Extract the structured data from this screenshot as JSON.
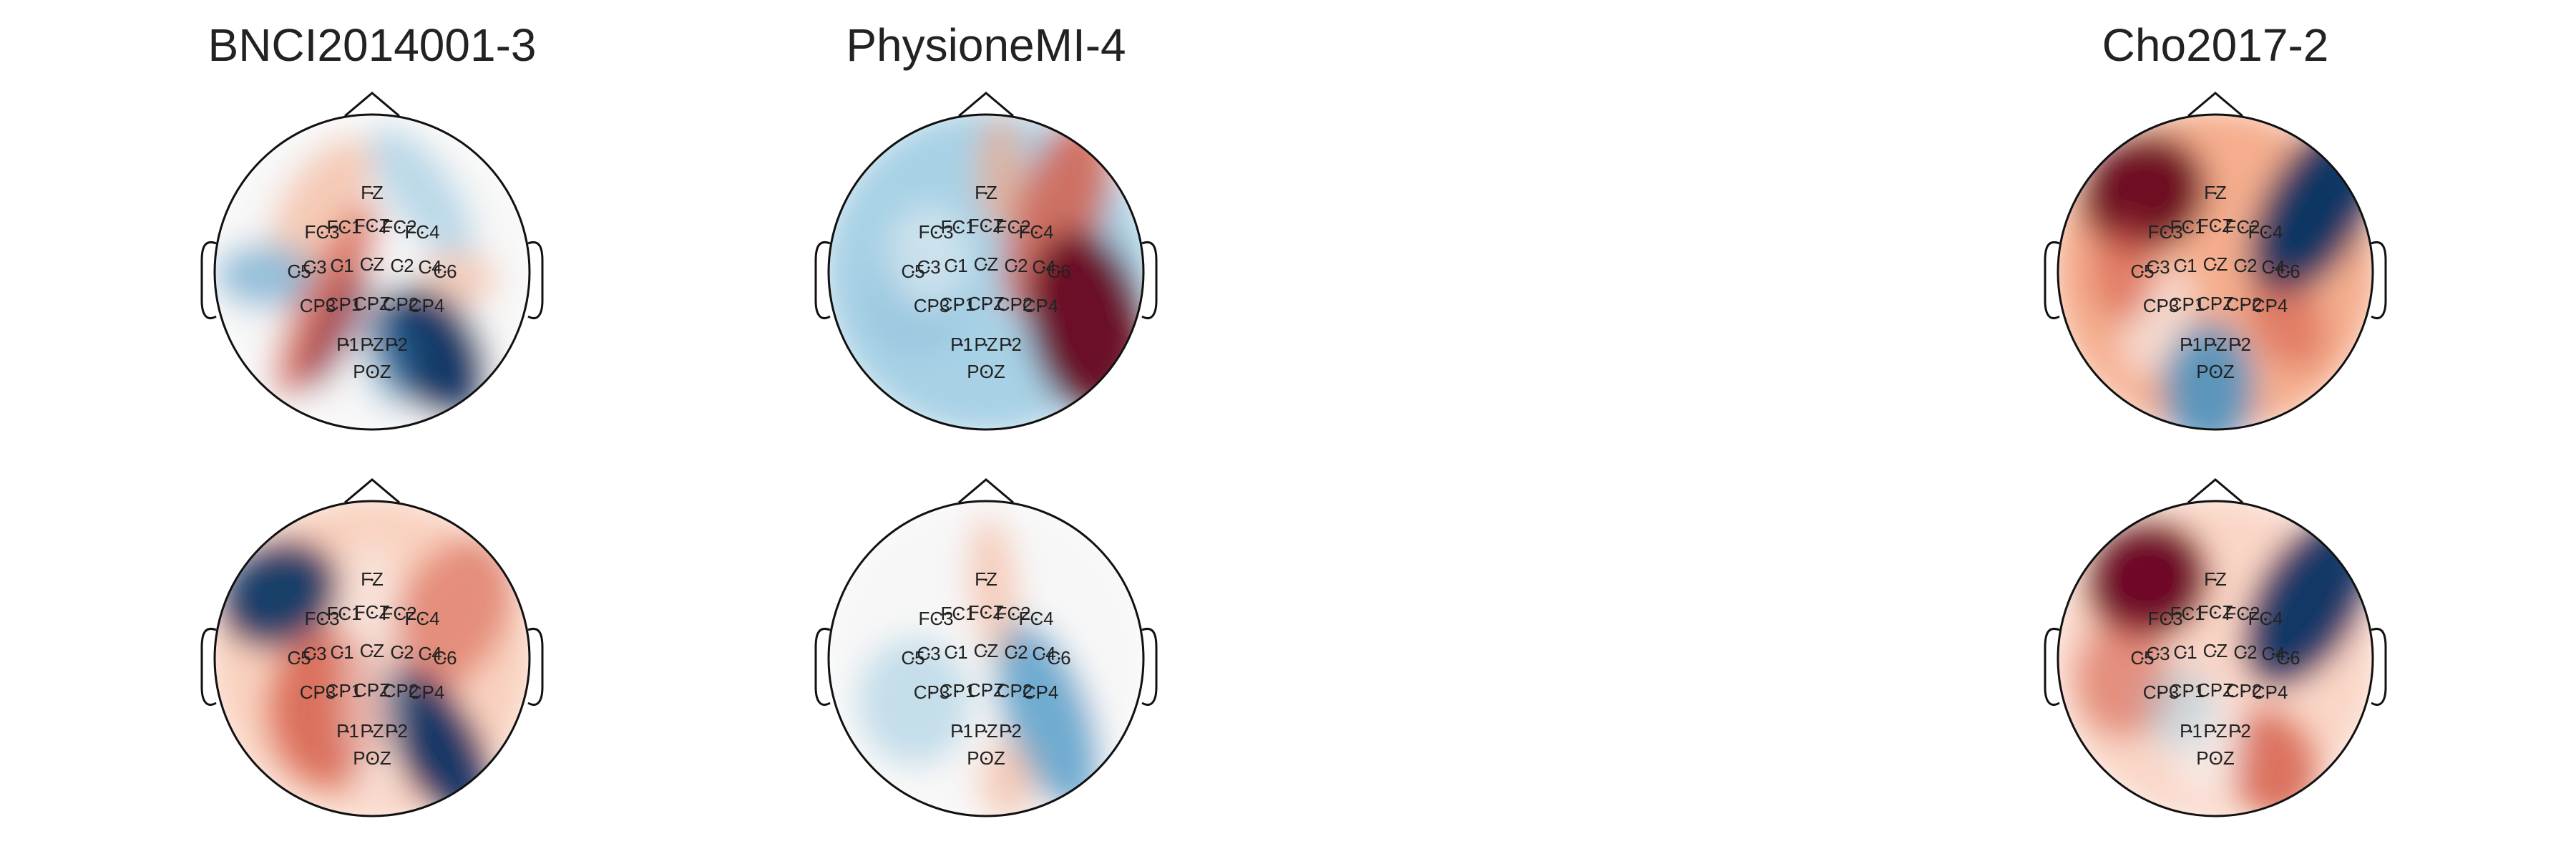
{
  "titles": [
    "BNCI2014001-3",
    "PhysioneMI-4",
    "Cho2017-2"
  ],
  "electrodes": [
    "FZ",
    "FC3",
    "FC1",
    "FCZ",
    "FC2",
    "FC4",
    "C5",
    "C3",
    "C1",
    "CZ",
    "C2",
    "C4",
    "C6",
    "CP3",
    "CP1",
    "CPZ",
    "CP2",
    "CP4",
    "P1",
    "PZ",
    "P2",
    "POZ"
  ],
  "colormap": {
    "negative": "#053061",
    "mid_neg": "#4393c3",
    "neutral": "#f7f7f7",
    "mid_pos": "#d6604d",
    "positive": "#67001f"
  }
}
